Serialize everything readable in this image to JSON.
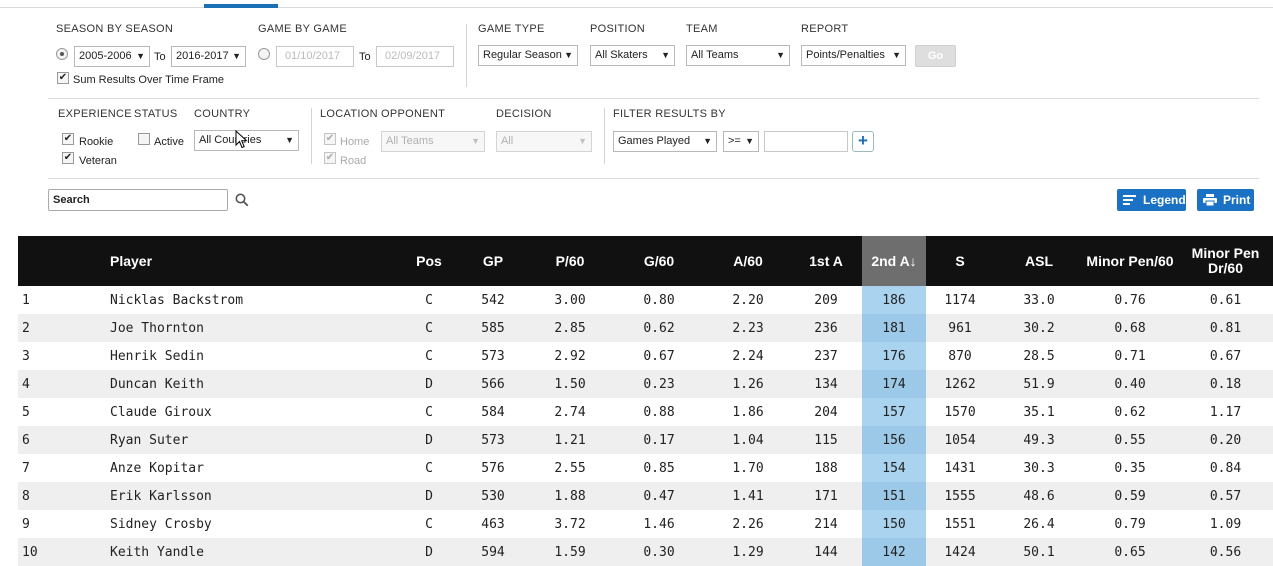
{
  "filters": {
    "season_by_season_label": "SEASON BY SEASON",
    "season_from": "2005-2006",
    "to_label": "To",
    "season_to": "2016-2017",
    "sum_results_label": "Sum Results Over Time Frame",
    "game_by_game_label": "GAME BY GAME",
    "date_from": "01/10/2017",
    "date_to": "02/09/2017",
    "game_type_label": "GAME TYPE",
    "game_type": "Regular Season",
    "position_label": "POSITION",
    "position": "All Skaters",
    "team_label": "TEAM",
    "team": "All Teams",
    "report_label": "REPORT",
    "report": "Points/Penalties",
    "go_label": "Go",
    "experience_label": "EXPERIENCE",
    "rookie_label": "Rookie",
    "veteran_label": "Veteran",
    "status_label": "STATUS",
    "active_label": "Active",
    "country_label": "COUNTRY",
    "country": "All Countries",
    "location_label": "LOCATION",
    "home_label": "Home",
    "road_label": "Road",
    "opponent_label": "OPPONENT",
    "opponent": "All Teams",
    "decision_label": "DECISION",
    "decision": "All",
    "filter_results_label": "FILTER RESULTS BY",
    "filter_field": "Games Played",
    "filter_operator": ">=",
    "filter_value": "",
    "add_filter_label": "+"
  },
  "toolbar": {
    "search_value": "Search",
    "legend_label": "Legend",
    "print_label": "Print"
  },
  "table": {
    "columns": [
      "",
      "Player",
      "Pos",
      "GP",
      "P/60",
      "G/60",
      "A/60",
      "1st A",
      "2nd A↓",
      "S",
      "ASL",
      "Minor Pen/60",
      "Minor Pen Dr/60"
    ],
    "sorted_column": "2nd A",
    "rows": [
      [
        "1",
        "Nicklas Backstrom",
        "C",
        "542",
        "3.00",
        "0.80",
        "2.20",
        "209",
        "186",
        "1174",
        "33.0",
        "0.76",
        "0.61"
      ],
      [
        "2",
        "Joe Thornton",
        "C",
        "585",
        "2.85",
        "0.62",
        "2.23",
        "236",
        "181",
        "961",
        "30.2",
        "0.68",
        "0.81"
      ],
      [
        "3",
        "Henrik Sedin",
        "C",
        "573",
        "2.92",
        "0.67",
        "2.24",
        "237",
        "176",
        "870",
        "28.5",
        "0.71",
        "0.67"
      ],
      [
        "4",
        "Duncan Keith",
        "D",
        "566",
        "1.50",
        "0.23",
        "1.26",
        "134",
        "174",
        "1262",
        "51.9",
        "0.40",
        "0.18"
      ],
      [
        "5",
        "Claude Giroux",
        "C",
        "584",
        "2.74",
        "0.88",
        "1.86",
        "204",
        "157",
        "1570",
        "35.1",
        "0.62",
        "1.17"
      ],
      [
        "6",
        "Ryan Suter",
        "D",
        "573",
        "1.21",
        "0.17",
        "1.04",
        "115",
        "156",
        "1054",
        "49.3",
        "0.55",
        "0.20"
      ],
      [
        "7",
        "Anze Kopitar",
        "C",
        "576",
        "2.55",
        "0.85",
        "1.70",
        "188",
        "154",
        "1431",
        "30.3",
        "0.35",
        "0.84"
      ],
      [
        "8",
        "Erik Karlsson",
        "D",
        "530",
        "1.88",
        "0.47",
        "1.41",
        "171",
        "151",
        "1555",
        "48.6",
        "0.59",
        "0.57"
      ],
      [
        "9",
        "Sidney Crosby",
        "C",
        "463",
        "3.72",
        "1.46",
        "2.26",
        "214",
        "150",
        "1551",
        "26.4",
        "0.79",
        "1.09"
      ],
      [
        "10",
        "Keith Yandle",
        "D",
        "594",
        "1.59",
        "0.30",
        "1.29",
        "144",
        "142",
        "1424",
        "50.1",
        "0.65",
        "0.56"
      ]
    ]
  }
}
